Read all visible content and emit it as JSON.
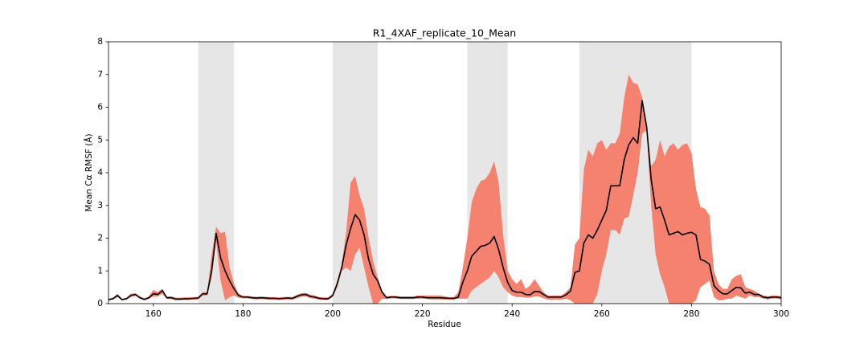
{
  "chart_data": {
    "type": "line",
    "title": "R1_4XAF_replicate_10_Mean",
    "xlabel": "Residue",
    "ylabel": "Mean Cα RMSF (Å)",
    "x": [
      150,
      151,
      152,
      153,
      154,
      155,
      156,
      157,
      158,
      159,
      160,
      161,
      162,
      163,
      164,
      165,
      166,
      167,
      168,
      169,
      170,
      171,
      172,
      173,
      174,
      175,
      176,
      177,
      178,
      179,
      180,
      181,
      182,
      183,
      184,
      185,
      186,
      187,
      188,
      189,
      190,
      191,
      192,
      193,
      194,
      195,
      196,
      197,
      198,
      199,
      200,
      201,
      202,
      203,
      204,
      205,
      206,
      207,
      208,
      209,
      210,
      211,
      212,
      213,
      214,
      215,
      216,
      217,
      218,
      219,
      220,
      221,
      222,
      223,
      224,
      225,
      226,
      227,
      228,
      229,
      230,
      231,
      232,
      233,
      234,
      235,
      236,
      237,
      238,
      239,
      240,
      241,
      242,
      243,
      244,
      245,
      246,
      247,
      248,
      249,
      250,
      251,
      252,
      253,
      254,
      255,
      256,
      257,
      258,
      259,
      260,
      261,
      262,
      263,
      264,
      265,
      266,
      267,
      268,
      269,
      270,
      271,
      272,
      273,
      274,
      275,
      276,
      277,
      278,
      279,
      280,
      281,
      282,
      283,
      284,
      285,
      286,
      287,
      288,
      289,
      290,
      291,
      292,
      293,
      294,
      295,
      296,
      297,
      298,
      299,
      300
    ],
    "values": [
      0.12,
      0.15,
      0.25,
      0.12,
      0.15,
      0.25,
      0.28,
      0.18,
      0.13,
      0.18,
      0.3,
      0.28,
      0.4,
      0.18,
      0.18,
      0.14,
      0.14,
      0.15,
      0.15,
      0.16,
      0.17,
      0.3,
      0.3,
      1.0,
      2.15,
      1.4,
      1.0,
      0.7,
      0.45,
      0.25,
      0.2,
      0.2,
      0.18,
      0.17,
      0.18,
      0.17,
      0.16,
      0.16,
      0.15,
      0.16,
      0.17,
      0.16,
      0.22,
      0.27,
      0.28,
      0.22,
      0.2,
      0.16,
      0.15,
      0.15,
      0.25,
      0.6,
      1.1,
      1.8,
      2.3,
      2.72,
      2.55,
      2.1,
      1.35,
      0.9,
      0.7,
      0.35,
      0.18,
      0.2,
      0.2,
      0.18,
      0.18,
      0.18,
      0.18,
      0.2,
      0.2,
      0.18,
      0.18,
      0.18,
      0.18,
      0.17,
      0.16,
      0.16,
      0.2,
      0.65,
      1.0,
      1.45,
      1.6,
      1.75,
      1.78,
      1.85,
      2.05,
      1.65,
      1.1,
      0.65,
      0.4,
      0.35,
      0.35,
      0.28,
      0.27,
      0.37,
      0.37,
      0.28,
      0.2,
      0.2,
      0.2,
      0.2,
      0.27,
      0.38,
      0.95,
      1.0,
      1.85,
      2.1,
      2.0,
      2.25,
      2.55,
      2.85,
      3.6,
      3.6,
      3.6,
      4.4,
      4.85,
      5.07,
      4.9,
      6.2,
      5.4,
      3.8,
      2.9,
      2.95,
      2.55,
      2.1,
      2.15,
      2.2,
      2.1,
      2.15,
      2.18,
      2.1,
      1.35,
      1.3,
      1.2,
      0.55,
      0.4,
      0.3,
      0.3,
      0.4,
      0.5,
      0.48,
      0.32,
      0.35,
      0.28,
      0.28,
      0.2,
      0.18,
      0.2,
      0.2,
      0.18
    ],
    "color": "#000000",
    "band": {
      "color": "#f4826f",
      "lower": [
        0.1,
        0.12,
        0.2,
        0.1,
        0.12,
        0.2,
        0.24,
        0.15,
        0.1,
        0.14,
        0.22,
        0.22,
        0.3,
        0.14,
        0.14,
        0.1,
        0.1,
        0.11,
        0.11,
        0.12,
        0.13,
        0.25,
        0.25,
        0.8,
        1.9,
        0.7,
        0.1,
        0.2,
        0.25,
        0.18,
        0.16,
        0.16,
        0.14,
        0.13,
        0.14,
        0.13,
        0.12,
        0.12,
        0.11,
        0.12,
        0.13,
        0.12,
        0.17,
        0.21,
        0.22,
        0.17,
        0.15,
        0.12,
        0.11,
        0.11,
        0.2,
        0.5,
        1.0,
        1.1,
        1.0,
        1.5,
        1.7,
        1.1,
        0.5,
        0.0,
        0.0,
        0.15,
        0.14,
        0.16,
        0.16,
        0.14,
        0.14,
        0.14,
        0.14,
        0.15,
        0.15,
        0.14,
        0.13,
        0.13,
        0.13,
        0.12,
        0.12,
        0.12,
        0.15,
        0.15,
        0.15,
        0.4,
        0.5,
        0.6,
        0.7,
        0.8,
        1.0,
        0.8,
        0.5,
        0.35,
        0.25,
        0.2,
        0.2,
        0.18,
        0.18,
        0.22,
        0.22,
        0.16,
        0.12,
        0.12,
        0.12,
        0.12,
        0.15,
        0.1,
        0.0,
        0.0,
        0.0,
        0.0,
        0.0,
        0.3,
        1.0,
        1.5,
        2.25,
        2.25,
        2.1,
        2.6,
        2.65,
        3.3,
        4.0,
        5.2,
        5.3,
        3.0,
        1.5,
        0.9,
        0.5,
        0.0,
        0.0,
        0.0,
        0.0,
        0.0,
        0.0,
        0.1,
        0.5,
        0.6,
        0.7,
        0.2,
        0.1,
        0.1,
        0.15,
        0.15,
        0.25,
        0.2,
        0.15,
        0.25,
        0.2,
        0.2,
        0.15,
        0.13,
        0.15,
        0.15,
        0.13
      ],
      "upper": [
        0.15,
        0.18,
        0.3,
        0.15,
        0.18,
        0.3,
        0.32,
        0.22,
        0.16,
        0.22,
        0.42,
        0.35,
        0.45,
        0.22,
        0.22,
        0.18,
        0.18,
        0.19,
        0.19,
        0.2,
        0.21,
        0.35,
        0.35,
        1.5,
        2.35,
        2.15,
        2.2,
        1.1,
        0.6,
        0.3,
        0.24,
        0.24,
        0.22,
        0.21,
        0.22,
        0.21,
        0.2,
        0.2,
        0.19,
        0.2,
        0.21,
        0.2,
        0.27,
        0.32,
        0.33,
        0.27,
        0.25,
        0.2,
        0.19,
        0.19,
        0.3,
        0.7,
        1.2,
        2.2,
        3.7,
        3.9,
        3.3,
        2.9,
        2.0,
        1.3,
        0.8,
        0.4,
        0.22,
        0.24,
        0.24,
        0.22,
        0.22,
        0.22,
        0.22,
        0.25,
        0.25,
        0.25,
        0.25,
        0.25,
        0.25,
        0.22,
        0.2,
        0.2,
        0.35,
        1.1,
        2.0,
        3.1,
        3.5,
        3.75,
        3.8,
        4.0,
        4.35,
        3.7,
        2.1,
        1.0,
        0.75,
        0.6,
        0.75,
        0.45,
        0.55,
        0.75,
        0.55,
        0.35,
        0.25,
        0.25,
        0.25,
        0.25,
        0.35,
        0.5,
        1.8,
        2.0,
        4.1,
        4.7,
        4.5,
        4.9,
        5.0,
        4.7,
        4.9,
        4.9,
        5.2,
        6.3,
        7.0,
        6.75,
        6.7,
        6.3,
        5.5,
        4.2,
        4.4,
        5.0,
        4.5,
        4.8,
        4.9,
        4.7,
        4.85,
        4.9,
        4.6,
        3.5,
        2.95,
        2.9,
        2.7,
        1.0,
        0.6,
        0.45,
        0.45,
        0.75,
        0.85,
        0.9,
        0.5,
        0.45,
        0.4,
        0.3,
        0.25,
        0.22,
        0.25,
        0.25,
        0.22
      ]
    },
    "spans": [
      [
        170,
        178
      ],
      [
        200,
        210
      ],
      [
        230,
        239
      ],
      [
        255,
        280
      ]
    ],
    "span_color": "#e6e6e6",
    "xlim": [
      150,
      300
    ],
    "xticks": [
      160,
      180,
      200,
      220,
      240,
      260,
      280,
      300
    ],
    "ylim": [
      0,
      8
    ],
    "yticks": [
      0,
      1,
      2,
      3,
      4,
      5,
      6,
      7,
      8
    ]
  }
}
